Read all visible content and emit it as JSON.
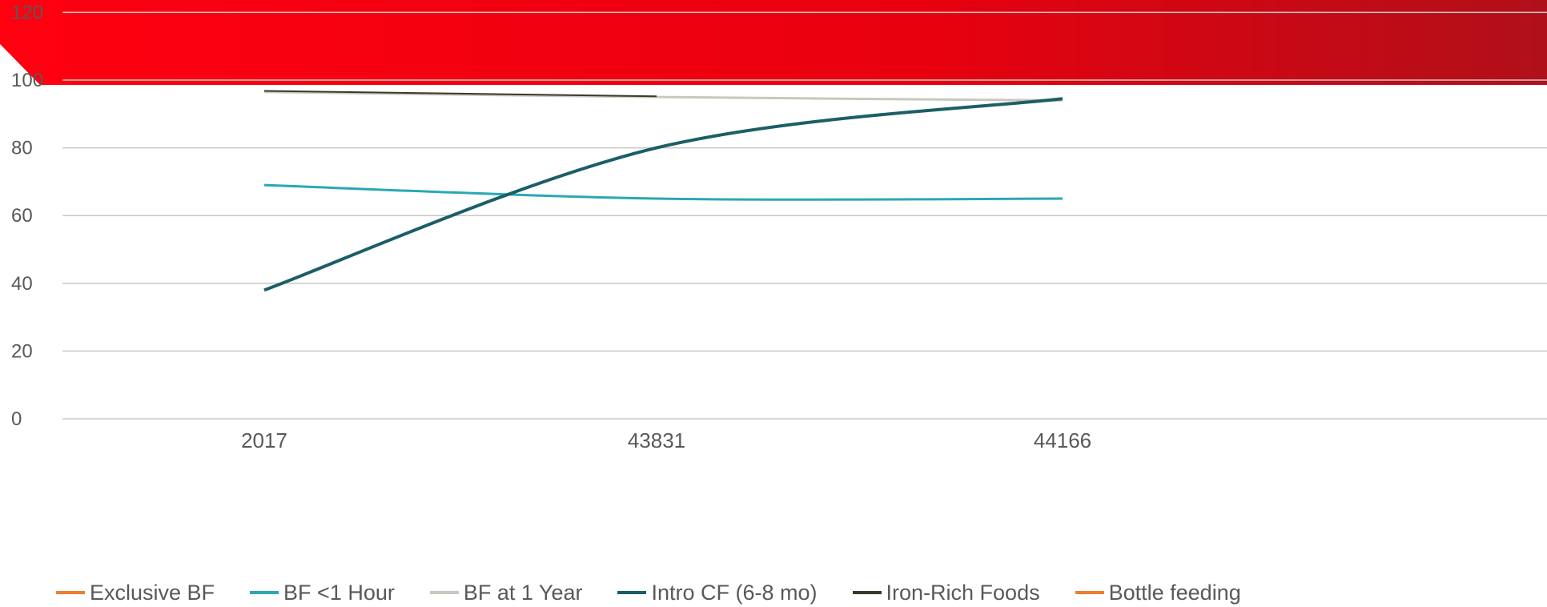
{
  "colors": {
    "banner_start": "#ff0010",
    "banner_end": "#b0101a",
    "grid": "#c8c8c8",
    "axis_text": "#595959"
  },
  "chart_data": {
    "type": "line",
    "title": "",
    "xlabel": "",
    "ylabel": "",
    "categories": [
      "2017",
      "43831",
      "44166"
    ],
    "ylim": [
      0,
      120
    ],
    "yticks": [
      "0",
      "20",
      "40",
      "60",
      "80",
      "100",
      "120"
    ],
    "grid": true,
    "legend_position": "bottom",
    "series": [
      {
        "name": "Exclusive BF",
        "color": "#ed7d31",
        "values": [
          null,
          null,
          null
        ]
      },
      {
        "name": "BF <1 Hour",
        "color": "#2aa8b4",
        "values": [
          69,
          65,
          65
        ]
      },
      {
        "name": "BF at 1 Year",
        "color": "#c8c8c0",
        "values": [
          96.5,
          95,
          94
        ]
      },
      {
        "name": "Intro CF (6-8 mo)",
        "color": "#1b5e66",
        "values": [
          38,
          80,
          94.5
        ]
      },
      {
        "name": "Iron-Rich Foods",
        "color": "#3a3a2a",
        "values": [
          96.8,
          95.2,
          null
        ]
      },
      {
        "name": "Bottle feeding",
        "color": "#ed7d31",
        "values": [
          null,
          null,
          null
        ]
      }
    ]
  }
}
